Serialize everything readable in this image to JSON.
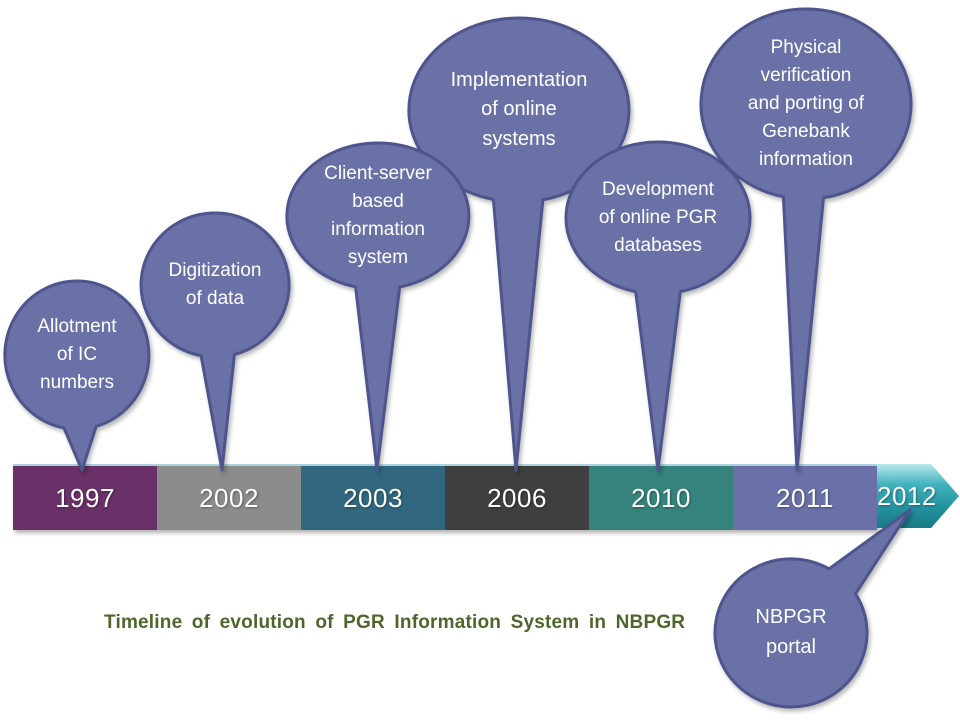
{
  "title": {
    "text": "Timeline of evolution of PGR Information System in NBPGR",
    "color": "#4e652b"
  },
  "bubble_style": {
    "fill": "#6a71a7",
    "stroke": "#4d548c"
  },
  "timeline": {
    "bar_highlight": "#aed2dd",
    "segments": [
      {
        "year": "1997",
        "color": "#6a3168"
      },
      {
        "year": "2002",
        "color": "#8c8c8c"
      },
      {
        "year": "2003",
        "color": "#31687f"
      },
      {
        "year": "2006",
        "color": "#3f3f3f"
      },
      {
        "year": "2010",
        "color": "#36837d"
      },
      {
        "year": "2011",
        "color": "#6a71a8"
      }
    ],
    "arrow": {
      "year": "2012",
      "gradient": [
        "#b9e9ee",
        "#41b2bd",
        "#23929f",
        "#197987"
      ]
    }
  },
  "callouts": [
    {
      "year": "1997",
      "lines": [
        "Allotment",
        "of IC",
        "numbers"
      ]
    },
    {
      "year": "2002",
      "lines": [
        "Digitization",
        "of data"
      ]
    },
    {
      "year": "2003",
      "lines": [
        "Client-server",
        "based",
        "information",
        "system"
      ]
    },
    {
      "year": "2006",
      "lines": [
        "Implementation",
        "of online",
        "systems"
      ]
    },
    {
      "year": "2010",
      "lines": [
        "Development",
        "of online PGR",
        "databases"
      ]
    },
    {
      "year": "2011",
      "lines": [
        "Physical",
        "verification",
        "and porting of",
        "Genebank",
        "information"
      ]
    },
    {
      "year": "2012",
      "lines": [
        "NBPGR",
        "portal"
      ]
    }
  ]
}
